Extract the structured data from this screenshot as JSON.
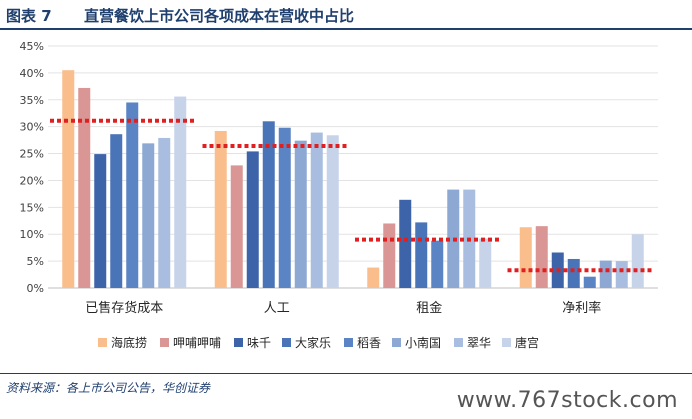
{
  "figure": {
    "label": "图表 7",
    "title": "直营餐饮上市公司各项成本在营收中占比",
    "source": "资料来源：各上市公司公告，华创证券",
    "watermark": "www.767stock.com"
  },
  "chart_data": {
    "type": "bar",
    "categories": [
      "已售存货成本",
      "人工",
      "租金",
      "净利率"
    ],
    "ylim": [
      0,
      45
    ],
    "yticks": [
      "0%",
      "5%",
      "10%",
      "15%",
      "20%",
      "25%",
      "30%",
      "35%",
      "40%",
      "45%"
    ],
    "y_unit": "%",
    "grid": true,
    "legend_position": "bottom",
    "series": [
      {
        "name": "海底捞",
        "color": "#f9be8c",
        "values": [
          40.5,
          29.2,
          3.8,
          11.3
        ]
      },
      {
        "name": "呷哺呷哺",
        "color": "#d99694",
        "values": [
          37.2,
          22.8,
          12.0,
          11.5
        ]
      },
      {
        "name": "味千",
        "color": "#3d64a8",
        "values": [
          24.9,
          25.4,
          16.4,
          6.6
        ]
      },
      {
        "name": "大家乐",
        "color": "#4a74b8",
        "values": [
          28.6,
          31.0,
          12.2,
          5.4
        ]
      },
      {
        "name": "稻香",
        "color": "#5a84c4",
        "values": [
          34.5,
          29.8,
          8.8,
          2.1
        ]
      },
      {
        "name": "小南国",
        "color": "#8ea8d4",
        "values": [
          26.9,
          27.4,
          18.3,
          5.1
        ]
      },
      {
        "name": "翠华",
        "color": "#a8bddf",
        "values": [
          27.9,
          28.9,
          18.3,
          5.0
        ]
      },
      {
        "name": "唐宫",
        "color": "#c7d3e9",
        "values": [
          35.6,
          28.4,
          9.2,
          10.0
        ]
      }
    ],
    "averages": {
      "color": "#e02020",
      "values": [
        31.1,
        26.4,
        9.0,
        3.3
      ]
    }
  }
}
